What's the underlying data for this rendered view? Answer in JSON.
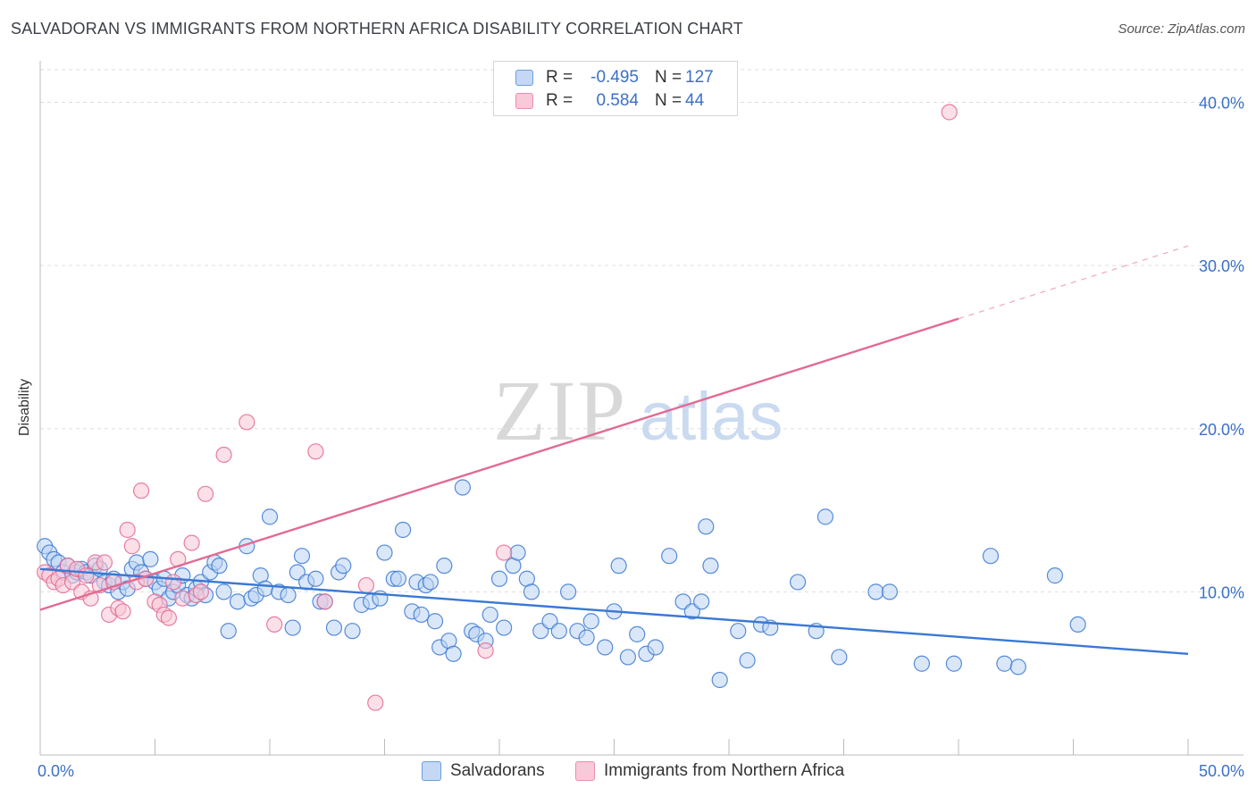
{
  "title": "SALVADORAN VS IMMIGRANTS FROM NORTHERN AFRICA DISABILITY CORRELATION CHART",
  "source": "Source: ZipAtlas.com",
  "watermark": {
    "zip": "ZIP",
    "atlas": "atlas"
  },
  "legend": {
    "items": [
      {
        "r_label": "R =",
        "r_value": "-0.495",
        "n_label": "N =",
        "n_value": "127",
        "color": "#6a9de0",
        "fill": "#c4d8f5"
      },
      {
        "r_label": "R =",
        "r_value": "0.584",
        "n_label": "N =",
        "n_value": "44",
        "color": "#e890ae",
        "fill": "#f8c9d8"
      }
    ]
  },
  "chart_data": {
    "type": "scatter",
    "ylabel": "Disability",
    "xlim": [
      0,
      50
    ],
    "ylim": [
      0,
      42
    ],
    "x_tick_labels": [
      "0.0%",
      "50.0%"
    ],
    "y_ticks": [
      10,
      20,
      30,
      40
    ],
    "y_tick_labels": [
      "10.0%",
      "20.0%",
      "30.0%",
      "40.0%"
    ],
    "grid": "horizontal dashed",
    "legend_position": "top-center and bottom",
    "series": [
      {
        "name": "Salvadorans",
        "color": "#3a78d4",
        "fill": "#bcd3f3",
        "trend": {
          "x": [
            0,
            50
          ],
          "y": [
            11.4,
            6.2
          ],
          "dashed_from": null
        },
        "points": [
          [
            0.2,
            12.8
          ],
          [
            0.4,
            12.4
          ],
          [
            0.6,
            12.0
          ],
          [
            0.8,
            11.8
          ],
          [
            1.0,
            11.2
          ],
          [
            1.2,
            11.6
          ],
          [
            1.4,
            11.0
          ],
          [
            1.6,
            11.2
          ],
          [
            1.8,
            11.4
          ],
          [
            2.0,
            11.2
          ],
          [
            2.2,
            11.0
          ],
          [
            2.4,
            11.6
          ],
          [
            2.6,
            11.4
          ],
          [
            2.8,
            10.6
          ],
          [
            3.0,
            10.4
          ],
          [
            3.2,
            10.8
          ],
          [
            3.4,
            10.0
          ],
          [
            3.6,
            10.6
          ],
          [
            3.8,
            10.2
          ],
          [
            4.0,
            11.4
          ],
          [
            4.2,
            11.8
          ],
          [
            4.4,
            11.2
          ],
          [
            4.6,
            10.8
          ],
          [
            4.8,
            12.0
          ],
          [
            5.0,
            10.6
          ],
          [
            5.2,
            10.2
          ],
          [
            5.4,
            10.8
          ],
          [
            5.6,
            9.6
          ],
          [
            5.8,
            10.0
          ],
          [
            6.0,
            10.4
          ],
          [
            6.2,
            11.0
          ],
          [
            6.4,
            9.8
          ],
          [
            6.6,
            9.6
          ],
          [
            6.8,
            10.2
          ],
          [
            7.0,
            10.6
          ],
          [
            7.2,
            9.8
          ],
          [
            7.4,
            11.2
          ],
          [
            7.6,
            11.8
          ],
          [
            7.8,
            11.6
          ],
          [
            8.0,
            10.0
          ],
          [
            8.2,
            7.6
          ],
          [
            8.6,
            9.4
          ],
          [
            9.0,
            12.8
          ],
          [
            9.2,
            9.6
          ],
          [
            9.4,
            9.8
          ],
          [
            9.6,
            11.0
          ],
          [
            9.8,
            10.2
          ],
          [
            10.0,
            14.6
          ],
          [
            10.4,
            10.0
          ],
          [
            10.8,
            9.8
          ],
          [
            11.0,
            7.8
          ],
          [
            11.2,
            11.2
          ],
          [
            11.4,
            12.2
          ],
          [
            11.6,
            10.6
          ],
          [
            12.0,
            10.8
          ],
          [
            12.2,
            9.4
          ],
          [
            12.4,
            9.4
          ],
          [
            12.8,
            7.8
          ],
          [
            13.0,
            11.2
          ],
          [
            13.2,
            11.6
          ],
          [
            13.6,
            7.6
          ],
          [
            14.0,
            9.2
          ],
          [
            14.4,
            9.4
          ],
          [
            14.8,
            9.6
          ],
          [
            15.0,
            12.4
          ],
          [
            15.4,
            10.8
          ],
          [
            15.6,
            10.8
          ],
          [
            15.8,
            13.8
          ],
          [
            16.2,
            8.8
          ],
          [
            16.4,
            10.6
          ],
          [
            16.6,
            8.6
          ],
          [
            16.8,
            10.4
          ],
          [
            17.0,
            10.6
          ],
          [
            17.2,
            8.2
          ],
          [
            17.4,
            6.6
          ],
          [
            17.6,
            11.6
          ],
          [
            17.8,
            7.0
          ],
          [
            18.0,
            6.2
          ],
          [
            18.4,
            16.4
          ],
          [
            18.8,
            7.6
          ],
          [
            19.0,
            7.4
          ],
          [
            19.4,
            7.0
          ],
          [
            19.6,
            8.6
          ],
          [
            20.0,
            10.8
          ],
          [
            20.2,
            7.8
          ],
          [
            20.6,
            11.6
          ],
          [
            20.8,
            12.4
          ],
          [
            21.2,
            10.8
          ],
          [
            21.4,
            10.0
          ],
          [
            21.8,
            7.6
          ],
          [
            22.2,
            8.2
          ],
          [
            22.6,
            7.6
          ],
          [
            23.0,
            10.0
          ],
          [
            23.4,
            7.6
          ],
          [
            23.8,
            7.2
          ],
          [
            24.0,
            8.2
          ],
          [
            24.6,
            6.6
          ],
          [
            25.0,
            8.8
          ],
          [
            25.2,
            11.6
          ],
          [
            25.6,
            6.0
          ],
          [
            26.0,
            7.4
          ],
          [
            26.4,
            6.2
          ],
          [
            26.8,
            6.6
          ],
          [
            27.4,
            12.2
          ],
          [
            28.0,
            9.4
          ],
          [
            28.4,
            8.8
          ],
          [
            28.8,
            9.4
          ],
          [
            29.0,
            14.0
          ],
          [
            29.2,
            11.6
          ],
          [
            29.6,
            4.6
          ],
          [
            30.4,
            7.6
          ],
          [
            30.8,
            5.8
          ],
          [
            31.4,
            8.0
          ],
          [
            31.8,
            7.8
          ],
          [
            33.0,
            10.6
          ],
          [
            33.8,
            7.6
          ],
          [
            34.2,
            14.6
          ],
          [
            34.8,
            6.0
          ],
          [
            36.4,
            10.0
          ],
          [
            37.0,
            10.0
          ],
          [
            38.4,
            5.6
          ],
          [
            39.8,
            5.6
          ],
          [
            41.4,
            12.2
          ],
          [
            42.0,
            5.6
          ],
          [
            42.6,
            5.4
          ],
          [
            44.2,
            11.0
          ],
          [
            45.2,
            8.0
          ]
        ]
      },
      {
        "name": "Immigrants from Northern Africa",
        "color": "#e26a93",
        "fill": "#f8c6d6",
        "trend": {
          "x": [
            0,
            50
          ],
          "y": [
            8.9,
            31.2
          ],
          "dashed_from": 40
        },
        "points": [
          [
            0.2,
            11.2
          ],
          [
            0.4,
            11.0
          ],
          [
            0.6,
            10.6
          ],
          [
            0.8,
            10.8
          ],
          [
            1.0,
            10.4
          ],
          [
            1.2,
            11.6
          ],
          [
            1.4,
            10.6
          ],
          [
            1.6,
            11.4
          ],
          [
            1.8,
            10.0
          ],
          [
            2.0,
            11.0
          ],
          [
            2.2,
            9.6
          ],
          [
            2.4,
            11.8
          ],
          [
            2.6,
            10.4
          ],
          [
            2.8,
            11.8
          ],
          [
            3.0,
            8.6
          ],
          [
            3.2,
            10.6
          ],
          [
            3.4,
            9.0
          ],
          [
            3.6,
            8.8
          ],
          [
            3.8,
            13.8
          ],
          [
            4.0,
            12.8
          ],
          [
            4.2,
            10.6
          ],
          [
            4.4,
            16.2
          ],
          [
            4.6,
            10.8
          ],
          [
            5.0,
            9.4
          ],
          [
            5.2,
            9.2
          ],
          [
            5.4,
            8.6
          ],
          [
            5.6,
            8.4
          ],
          [
            5.8,
            10.6
          ],
          [
            6.0,
            12.0
          ],
          [
            6.2,
            9.6
          ],
          [
            6.6,
            13.0
          ],
          [
            6.8,
            9.8
          ],
          [
            7.0,
            10.0
          ],
          [
            7.2,
            16.0
          ],
          [
            8.0,
            18.4
          ],
          [
            9.0,
            20.4
          ],
          [
            10.2,
            8.0
          ],
          [
            12.0,
            18.6
          ],
          [
            12.4,
            9.4
          ],
          [
            14.2,
            10.4
          ],
          [
            14.6,
            3.2
          ],
          [
            19.4,
            6.4
          ],
          [
            20.2,
            12.4
          ],
          [
            39.6,
            39.4
          ]
        ]
      }
    ]
  },
  "bottom_legend": [
    {
      "label": "Salvadorans",
      "color": "#6a9de0",
      "fill": "#c4d8f5"
    },
    {
      "label": "Immigrants from Northern Africa",
      "color": "#e890ae",
      "fill": "#f8c9d8"
    }
  ]
}
